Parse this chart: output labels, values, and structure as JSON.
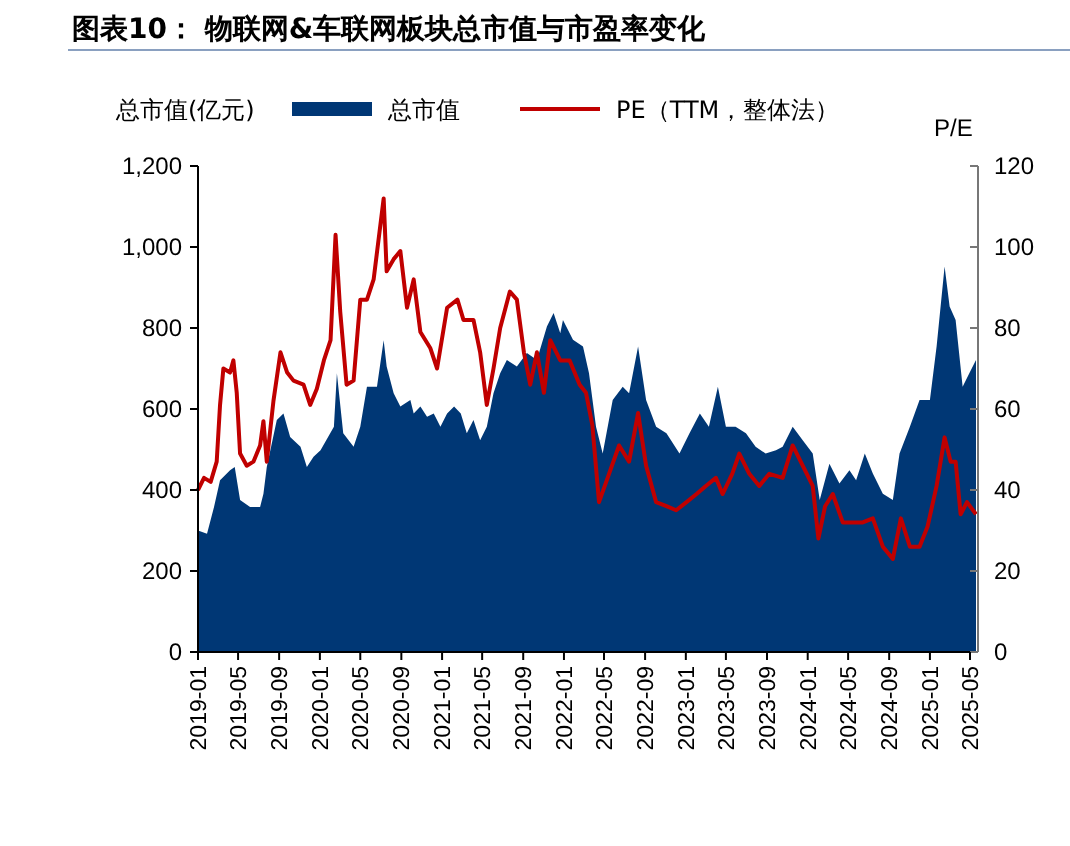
{
  "chart_data": {
    "type": "area",
    "title": "图表10：  物联网&车联网板块总市值与市盈率变化",
    "ylabel": "总市值(亿元)",
    "y2label": "P/E",
    "legend": "top",
    "grid": false,
    "xlim": [
      "2019-01-01",
      "2025-05-25"
    ],
    "xticks": [
      "2019-01",
      "2019-05",
      "2019-09",
      "2020-01",
      "2020-05",
      "2020-09",
      "2021-01",
      "2021-05",
      "2021-09",
      "2022-01",
      "2022-05",
      "2022-09",
      "2023-01",
      "2023-05",
      "2023-09",
      "2024-01",
      "2024-05",
      "2024-09",
      "2025-01",
      "2025-05"
    ],
    "ylim": [
      0,
      1200
    ],
    "yticks": [
      0,
      200,
      400,
      600,
      800,
      {
        "value": 1000,
        "label": "1,000"
      },
      {
        "value": 1200,
        "label": "1,200"
      }
    ],
    "y2lim": [
      0,
      120
    ],
    "y2ticks": [
      0,
      20,
      40,
      60,
      80,
      100,
      120
    ],
    "series": [
      {
        "name": "总市值",
        "color": "#003775",
        "x": [
          "2019-01-01",
          "2019-01-28",
          "2019-02-18",
          "2019-03-08",
          "2019-04-07",
          "2019-04-21",
          "2019-05-07",
          "2019-06-06",
          "2019-07-06",
          "2019-07-16",
          "2019-07-26",
          "2019-08-25",
          "2019-09-14",
          "2019-10-04",
          "2019-11-04",
          "2019-11-23",
          "2019-12-13",
          "2020-01-03",
          "2020-02-12",
          "2020-02-21",
          "2020-03-11",
          "2020-04-11",
          "2020-05-01",
          "2020-05-21",
          "2020-06-20",
          "2020-07-10",
          "2020-07-19",
          "2020-08-09",
          "2020-08-29",
          "2020-09-28",
          "2020-10-08",
          "2020-10-28",
          "2020-11-17",
          "2020-12-07",
          "2020-12-27",
          "2021-01-16",
          "2021-02-06",
          "2021-02-26",
          "2021-03-16",
          "2021-04-05",
          "2021-04-25",
          "2021-05-15",
          "2021-06-04",
          "2021-06-24",
          "2021-07-14",
          "2021-08-13",
          "2021-09-12",
          "2021-10-12",
          "2021-11-11",
          "2021-12-01",
          "2021-12-21",
          "2021-12-29",
          "2022-01-28",
          "2022-02-27",
          "2022-03-17",
          "2022-04-07",
          "2022-04-27",
          "2022-05-27",
          "2022-06-26",
          "2022-07-15",
          "2022-08-11",
          "2022-09-04",
          "2022-10-04",
          "2022-11-04",
          "2022-12-13",
          "2023-01-12",
          "2023-02-12",
          "2023-03-11",
          "2023-04-07",
          "2023-05-01",
          "2023-05-30",
          "2023-06-30",
          "2023-07-29",
          "2023-08-28",
          "2023-09-28",
          "2023-10-18",
          "2023-11-17",
          "2023-12-17",
          "2024-01-16",
          "2024-02-06",
          "2024-03-06",
          "2024-04-05",
          "2024-05-05",
          "2024-05-25",
          "2024-06-20",
          "2024-07-14",
          "2024-08-13",
          "2024-09-12",
          "2024-10-02",
          "2024-11-02",
          "2024-12-01",
          "2025-01-01",
          "2025-01-21",
          "2025-02-14",
          "2025-03-01",
          "2025-03-19",
          "2025-04-09",
          "2025-04-29",
          "2025-05-19"
        ],
        "values": [
          300,
          292,
          358,
          424,
          449,
          457,
          375,
          358,
          358,
          391,
          457,
          573,
          589,
          531,
          507,
          457,
          482,
          498,
          556,
          688,
          540,
          507,
          556,
          655,
          655,
          770,
          705,
          639,
          606,
          622,
          589,
          606,
          581,
          589,
          556,
          589,
          606,
          589,
          540,
          573,
          523,
          556,
          639,
          688,
          721,
          705,
          738,
          721,
          804,
          837,
          787,
          820,
          771,
          754,
          688,
          556,
          490,
          622,
          655,
          639,
          754,
          622,
          556,
          540,
          490,
          540,
          589,
          556,
          655,
          556,
          556,
          540,
          507,
          490,
          498,
          507,
          556,
          523,
          490,
          375,
          465,
          416,
          449,
          424,
          490,
          441,
          391,
          375,
          490,
          556,
          622,
          622,
          754,
          952,
          853,
          820,
          655,
          688,
          721
        ]
      },
      {
        "name": "PE（TTM，整体法）",
        "type": "line",
        "axis": "y2",
        "color": "#c00000",
        "x": [
          "2019-01-01",
          "2019-01-19",
          "2019-02-08",
          "2019-02-26",
          "2019-03-08",
          "2019-03-18",
          "2019-04-07",
          "2019-04-17",
          "2019-04-27",
          "2019-05-07",
          "2019-05-27",
          "2019-06-16",
          "2019-07-06",
          "2019-07-16",
          "2019-07-26",
          "2019-08-15",
          "2019-09-05",
          "2019-09-25",
          "2019-10-14",
          "2019-11-13",
          "2019-12-03",
          "2019-12-23",
          "2020-01-13",
          "2020-02-02",
          "2020-02-17",
          "2020-03-02",
          "2020-03-21",
          "2020-04-11",
          "2020-05-01",
          "2020-05-21",
          "2020-06-10",
          "2020-07-10",
          "2020-07-19",
          "2020-08-09",
          "2020-08-29",
          "2020-09-18",
          "2020-10-08",
          "2020-10-28",
          "2020-11-27",
          "2020-12-17",
          "2021-01-16",
          "2021-02-16",
          "2021-03-06",
          "2021-04-05",
          "2021-04-25",
          "2021-05-15",
          "2021-06-04",
          "2021-06-24",
          "2021-07-23",
          "2021-08-13",
          "2021-09-03",
          "2021-09-22",
          "2021-10-12",
          "2021-11-02",
          "2021-11-21",
          "2021-12-21",
          "2022-01-18",
          "2022-02-17",
          "2022-03-08",
          "2022-03-27",
          "2022-04-16",
          "2022-05-16",
          "2022-06-15",
          "2022-07-15",
          "2022-08-11",
          "2022-09-04",
          "2022-10-04",
          "2022-11-04",
          "2022-12-03",
          "2023-01-03",
          "2023-02-02",
          "2023-03-02",
          "2023-04-01",
          "2023-04-21",
          "2023-05-20",
          "2023-06-10",
          "2023-07-10",
          "2023-08-09",
          "2023-09-08",
          "2023-10-18",
          "2023-11-17",
          "2023-12-17",
          "2024-01-16",
          "2024-02-02",
          "2024-02-22",
          "2024-03-16",
          "2024-04-15",
          "2024-05-14",
          "2024-06-14",
          "2024-07-14",
          "2024-08-13",
          "2024-09-12",
          "2024-10-06",
          "2024-11-02",
          "2024-12-01",
          "2024-12-25",
          "2025-01-21",
          "2025-02-14",
          "2025-03-04",
          "2025-03-19",
          "2025-04-03",
          "2025-04-22",
          "2025-05-19"
        ],
        "values": [
          40,
          43,
          42,
          47,
          61,
          70,
          69,
          72,
          64,
          49,
          46,
          47,
          51,
          57,
          47,
          62,
          74,
          69,
          67,
          66,
          61,
          65,
          72,
          77,
          103,
          84,
          66,
          67,
          87,
          87,
          92,
          112,
          94,
          97,
          99,
          85,
          92,
          79,
          75,
          70,
          85,
          87,
          82,
          82,
          74,
          61,
          70,
          80,
          89,
          87,
          74,
          66,
          74,
          64,
          77,
          72,
          72,
          66,
          64,
          56,
          37,
          44,
          51,
          47,
          59,
          46,
          37,
          36,
          35,
          37,
          39,
          41,
          43,
          39,
          44,
          49,
          44,
          41,
          44,
          43,
          51,
          46,
          41,
          28,
          36,
          39,
          32,
          32,
          32,
          33,
          26,
          23,
          33,
          26,
          26,
          31,
          41,
          53,
          47,
          47,
          34,
          37,
          34
        ]
      }
    ]
  }
}
